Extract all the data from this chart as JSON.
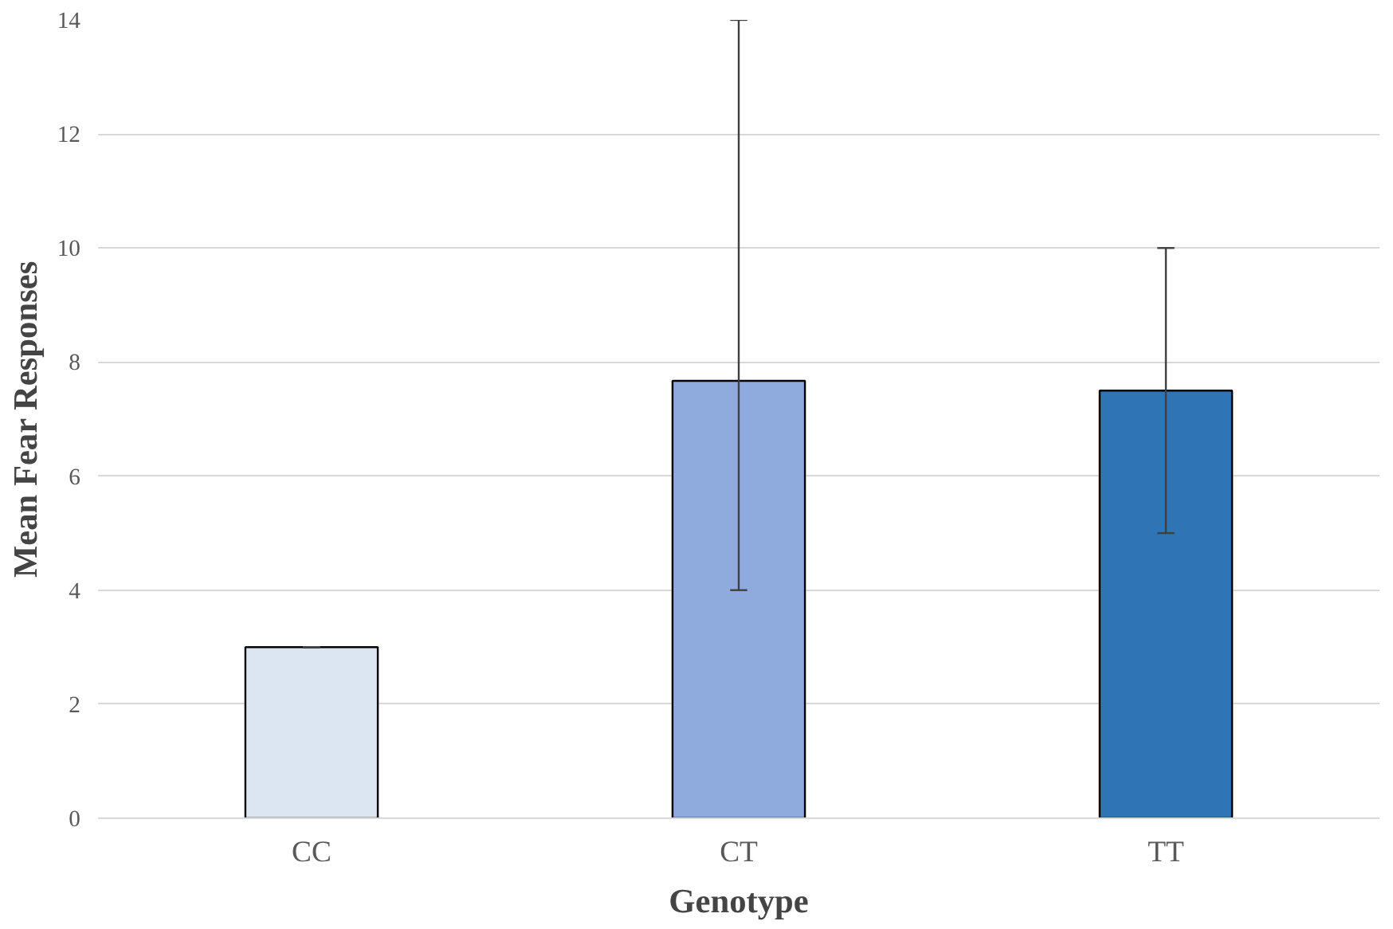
{
  "chart_data": {
    "type": "bar",
    "xlabel": "Genotype",
    "ylabel": "Mean Fear Responses",
    "categories": [
      "CC",
      "CT",
      "TT"
    ],
    "values": [
      3,
      7.67,
      7.5
    ],
    "colors": [
      "#dce6f2",
      "#8faadc",
      "#2e75b6"
    ],
    "errors": [
      [
        3,
        3
      ],
      [
        4,
        14
      ],
      [
        5,
        10
      ]
    ],
    "ylim": [
      0,
      14
    ],
    "yticks": [
      0,
      2,
      4,
      6,
      8,
      10,
      12,
      14
    ],
    "grid": "y"
  }
}
